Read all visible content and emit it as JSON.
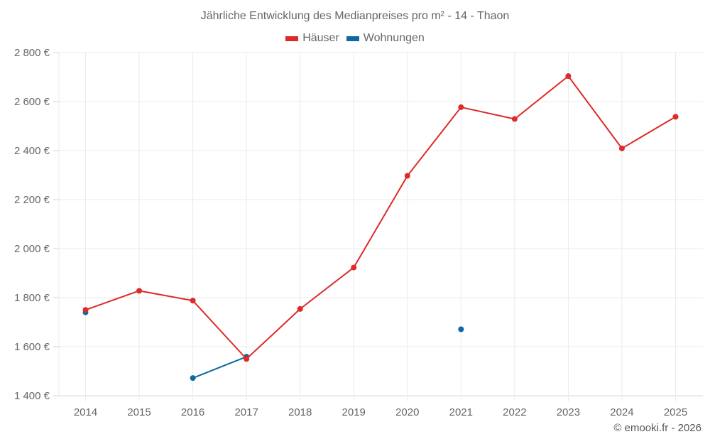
{
  "chart_data": {
    "type": "line",
    "title": "Jährliche Entwicklung des Medianpreises pro m² - 14 - Thaon",
    "xlabel": "",
    "ylabel": "",
    "categories": [
      "2014",
      "2015",
      "2016",
      "2017",
      "2018",
      "2019",
      "2020",
      "2021",
      "2022",
      "2023",
      "2024",
      "2025"
    ],
    "series": [
      {
        "name": "Häuser",
        "color": "#dd2a2a",
        "values": [
          1750,
          1828,
          1788,
          1550,
          1754,
          1923,
          2297,
          2577,
          2529,
          2704,
          2409,
          2538
        ]
      },
      {
        "name": "Wohnungen",
        "color": "#0d68a3",
        "values": [
          1740,
          null,
          1472,
          1559,
          null,
          null,
          null,
          1671,
          null,
          null,
          null,
          null
        ]
      }
    ],
    "ylim": [
      1400,
      2800
    ],
    "yticks": [
      1400,
      1600,
      1800,
      2000,
      2200,
      2400,
      2600,
      2800
    ],
    "ytick_labels": [
      "1 400 €",
      "1 600 €",
      "1 800 €",
      "2 000 €",
      "2 200 €",
      "2 400 €",
      "2 600 €",
      "2 800 €"
    ],
    "grid": true,
    "legend_position": "top"
  },
  "legend": {
    "items": [
      {
        "label": "Häuser",
        "color": "#dd2a2a"
      },
      {
        "label": "Wohnungen",
        "color": "#0d68a3"
      }
    ]
  },
  "credit": "© emooki.fr - 2026"
}
